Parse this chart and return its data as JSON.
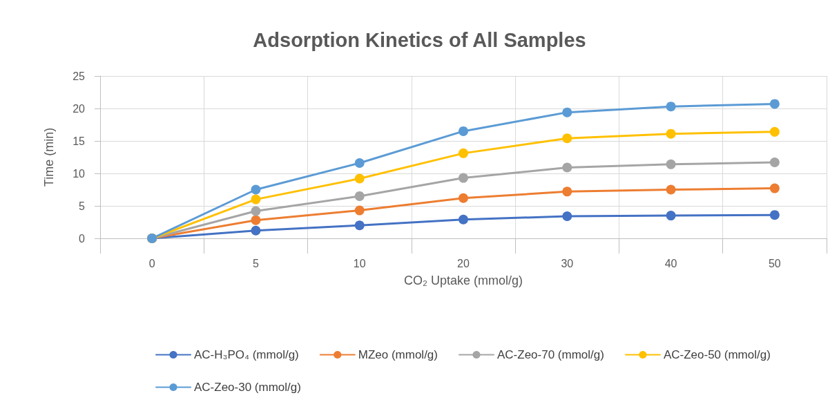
{
  "chart_data": {
    "type": "line",
    "title": "Adsorption Kinetics of All Samples",
    "xlabel": "CO₂ Uptake (mmol/g)",
    "ylabel": "Time (min)",
    "categories": [
      "0",
      "5",
      "10",
      "20",
      "30",
      "40",
      "50"
    ],
    "series": [
      {
        "name": "AC-H₃PO₄ (mmol/g)",
        "color": "#4472c4",
        "values": [
          0,
          1.2,
          2.0,
          2.9,
          3.4,
          3.5,
          3.6
        ]
      },
      {
        "name": "MZeo (mmol/g)",
        "color": "#ed7d31",
        "values": [
          0,
          2.8,
          4.3,
          6.2,
          7.2,
          7.5,
          7.7
        ]
      },
      {
        "name": "AC-Zeo-70 (mmol/g)",
        "color": "#a5a5a5",
        "values": [
          0,
          4.2,
          6.5,
          9.3,
          10.9,
          11.4,
          11.7
        ]
      },
      {
        "name": "AC-Zeo-50 (mmol/g)",
        "color": "#ffc000",
        "values": [
          0,
          6.0,
          9.2,
          13.1,
          15.4,
          16.1,
          16.4
        ]
      },
      {
        "name": "AC-Zeo-30 (mmol/g)",
        "color": "#5b9bd5",
        "values": [
          0,
          7.5,
          11.6,
          16.5,
          19.4,
          20.3,
          20.7
        ]
      }
    ],
    "ylim": [
      0,
      25
    ],
    "yticks": [
      0,
      5,
      10,
      15,
      20,
      25
    ],
    "grid": true,
    "legend": "bottom",
    "marker": "circle",
    "line_style": "solid"
  }
}
